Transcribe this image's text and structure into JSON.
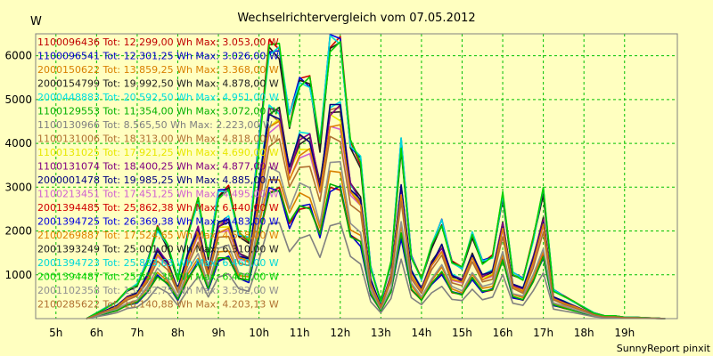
{
  "chart_data": {
    "type": "line",
    "title": "Wechselrichtervergleich vom 07.05.2012",
    "ylabel": "W",
    "xlabel": "",
    "footer": "SunnyReport pinxit",
    "ylim": [
      0,
      6500
    ],
    "xlim": [
      4.5,
      20.3
    ],
    "y_ticks": [
      1000,
      2000,
      3000,
      4000,
      5000,
      6000
    ],
    "x_ticks": [
      {
        "value": 5,
        "label": "5h"
      },
      {
        "value": 6,
        "label": "6h"
      },
      {
        "value": 7,
        "label": "7h"
      },
      {
        "value": 8,
        "label": "8h"
      },
      {
        "value": 9,
        "label": "9h"
      },
      {
        "value": 10,
        "label": "10h"
      },
      {
        "value": 11,
        "label": "11h"
      },
      {
        "value": 12,
        "label": "12h"
      },
      {
        "value": 13,
        "label": "13h"
      },
      {
        "value": 14,
        "label": "14h"
      },
      {
        "value": 15,
        "label": "15h"
      },
      {
        "value": 16,
        "label": "16h"
      },
      {
        "value": 17,
        "label": "17h"
      },
      {
        "value": 18,
        "label": "18h"
      },
      {
        "value": 19,
        "label": "19h"
      }
    ],
    "grid": true,
    "legend_position": "top-left inside",
    "x": [
      5.75,
      6,
      6.25,
      6.5,
      6.75,
      7,
      7.25,
      7.5,
      7.75,
      8,
      8.25,
      8.5,
      8.75,
      9,
      9.25,
      9.5,
      9.75,
      10,
      10.25,
      10.5,
      10.75,
      11,
      11.25,
      11.5,
      11.75,
      12,
      12.25,
      12.5,
      12.75,
      13,
      13.25,
      13.5,
      13.75,
      14,
      14.25,
      14.5,
      14.75,
      15,
      15.25,
      15.5,
      15.75,
      16,
      16.25,
      16.5,
      16.75,
      17,
      17.25,
      17.5,
      17.75,
      18,
      18.25,
      18.5,
      18.75,
      19,
      19.25,
      19.5,
      19.75,
      20
    ],
    "base_profile": [
      0,
      0.02,
      0.04,
      0.06,
      0.1,
      0.12,
      0.2,
      0.32,
      0.26,
      0.14,
      0.3,
      0.42,
      0.22,
      0.44,
      0.46,
      0.3,
      0.28,
      0.62,
      0.96,
      0.96,
      0.7,
      0.84,
      0.84,
      0.62,
      0.98,
      0.99,
      0.62,
      0.56,
      0.18,
      0.06,
      0.2,
      0.62,
      0.22,
      0.14,
      0.26,
      0.34,
      0.2,
      0.18,
      0.3,
      0.2,
      0.22,
      0.44,
      0.16,
      0.14,
      0.28,
      0.46,
      0.1,
      0.08,
      0.06,
      0.04,
      0.02,
      0.01,
      0.01,
      0.005,
      0.005,
      0.003,
      0.002,
      0
    ],
    "series": [
      {
        "name": "1100096436",
        "total": "Tot: 12.299,00 Wh",
        "max": "Max: 3.053,00 W",
        "max_value": 3053,
        "color": "#c00000"
      },
      {
        "name": "1100096541",
        "total": "Tot: 12.301,25 Wh",
        "max": "Max: 3.026,00 W",
        "max_value": 3026,
        "color": "#0000c8"
      },
      {
        "name": "2000150622",
        "total": "Tot: 13.859,25 Wh",
        "max": "Max: 3.368,00 W",
        "max_value": 3368,
        "color": "#d88000"
      },
      {
        "name": "2000154799",
        "total": "Tot: 19.992,50 Wh",
        "max": "Max: 4.878,00 W",
        "max_value": 4878,
        "color": "#202020"
      },
      {
        "name": "2000448883",
        "total": "Tot: 20.592,50 Wh",
        "max": "Max: 4.951,00 W",
        "max_value": 4951,
        "color": "#00e0e0"
      },
      {
        "name": "1100129553",
        "total": "Tot: 11.354,00 Wh",
        "max": "Max: 3.072,00 W",
        "max_value": 3072,
        "color": "#00b000"
      },
      {
        "name": "1100130966",
        "total": "Tot: 8.565,50 Wh",
        "max": "Max: 2.223,00 W",
        "max_value": 2223,
        "color": "#808080"
      },
      {
        "name": "1100131006",
        "total": "Tot: 18.313,00 Wh",
        "max": "Max: 4.818,00 W",
        "max_value": 4818,
        "color": "#b07030"
      },
      {
        "name": "1100131025",
        "total": "Tot: 17.921,25 Wh",
        "max": "Max: 4.690,00 W",
        "max_value": 4690,
        "color": "#e8e800"
      },
      {
        "name": "1100131074",
        "total": "Tot: 18.400,25 Wh",
        "max": "Max: 4.877,00 W",
        "max_value": 4877,
        "color": "#800080"
      },
      {
        "name": "2000001478",
        "total": "Tot: 19.985,25 Wh",
        "max": "Max: 4.885,00 W",
        "max_value": 4885,
        "color": "#000080"
      },
      {
        "name": "1100213451",
        "total": "Tot: 17.451,25 Wh",
        "max": "Max: 4.495,00 W",
        "max_value": 4495,
        "color": "#d060d0"
      },
      {
        "name": "2001394485",
        "total": "Tot: 25.862,38 Wh",
        "max": "Max: 6.440,00 W",
        "max_value": 6440,
        "color": "#d00000"
      },
      {
        "name": "2001394725",
        "total": "Tot: 26.369,38 Wh",
        "max": "Max: 6.483,00 W",
        "max_value": 6483,
        "color": "#0000e0"
      },
      {
        "name": "2100269887",
        "total": "Tot: 17.524,65 Wh",
        "max": "Max: 4.558,00 W",
        "max_value": 4558,
        "color": "#e08000"
      },
      {
        "name": "2001393249",
        "total": "Tot: 25.001,00 Wh",
        "max": "Max: 6.310,00 W",
        "max_value": 6310,
        "color": "#202020"
      },
      {
        "name": "2001394723",
        "total": "Tot: 25.833,63 Wh",
        "max": "Max: 6.460,00 W",
        "max_value": 6460,
        "color": "#00d8d8"
      },
      {
        "name": "2001394487",
        "total": "Tot: 25.557,38 Wh",
        "max": "Max: 6.400,00 W",
        "max_value": 6400,
        "color": "#00d000"
      },
      {
        "name": "2001102358",
        "total": "Tot: 13.162,75 Wh",
        "max": "Max: 3.582,00 W",
        "max_value": 3582,
        "color": "#909090"
      },
      {
        "name": "2100285622",
        "total": "Tot: 16.140,88 Wh",
        "max": "Max: 4.203,13 W",
        "max_value": 4203,
        "color": "#b07030"
      }
    ]
  }
}
